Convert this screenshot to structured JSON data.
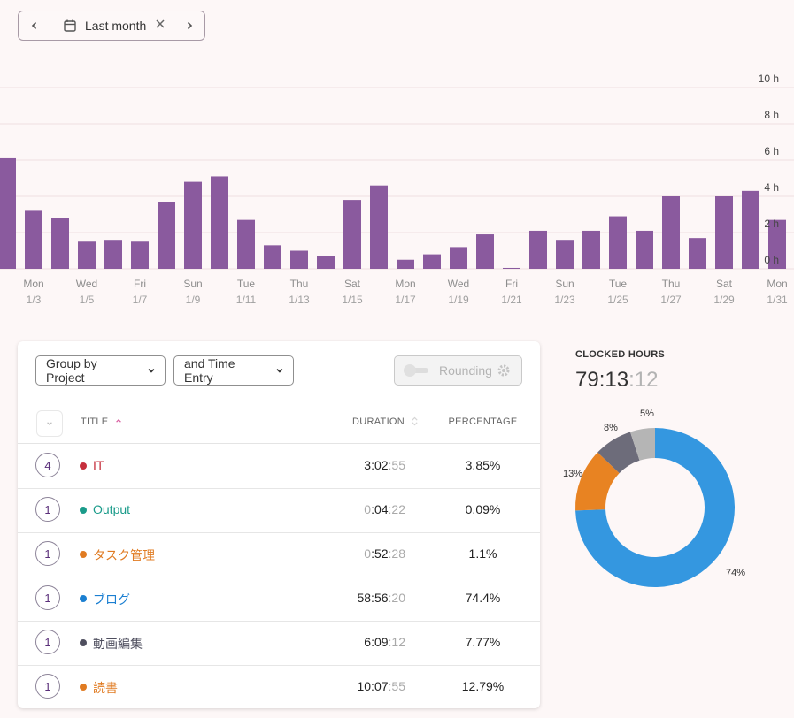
{
  "date_filter": {
    "label": "Last month"
  },
  "chart_data": {
    "type": "bar",
    "yticks": [
      "10 h",
      "8 h",
      "6 h",
      "4 h",
      "2 h",
      "0 h"
    ],
    "ylim": [
      0,
      10
    ],
    "x_labels": [
      {
        "day": "Mon",
        "date": "1/3"
      },
      {
        "day": "Wed",
        "date": "1/5"
      },
      {
        "day": "Fri",
        "date": "1/7"
      },
      {
        "day": "Sun",
        "date": "1/9"
      },
      {
        "day": "Tue",
        "date": "1/11"
      },
      {
        "day": "Thu",
        "date": "1/13"
      },
      {
        "day": "Sat",
        "date": "1/15"
      },
      {
        "day": "Mon",
        "date": "1/17"
      },
      {
        "day": "Wed",
        "date": "1/19"
      },
      {
        "day": "Fri",
        "date": "1/21"
      },
      {
        "day": "Sun",
        "date": "1/23"
      },
      {
        "day": "Tue",
        "date": "1/25"
      },
      {
        "day": "Thu",
        "date": "1/27"
      },
      {
        "day": "Sat",
        "date": "1/29"
      },
      {
        "day": "Mon",
        "date": "1/31"
      }
    ],
    "values": [
      6.1,
      3.2,
      2.8,
      1.5,
      1.6,
      1.5,
      3.7,
      4.8,
      5.1,
      2.7,
      1.3,
      1.0,
      0.7,
      3.8,
      4.6,
      0.5,
      0.8,
      1.2,
      1.9,
      0.05,
      2.1,
      1.6,
      2.1,
      2.9,
      2.1,
      4.0,
      1.7,
      4.0,
      4.3,
      2.7
    ],
    "color": "#8a5a9e"
  },
  "controls": {
    "group_by": "Group by Project",
    "sub_group": "and Time Entry",
    "rounding": "Rounding"
  },
  "table": {
    "headers": {
      "title": "TITLE",
      "duration": "DURATION",
      "percentage": "PERCENTAGE"
    },
    "rows": [
      {
        "count": "4",
        "name": "IT",
        "color": "#c62f3c",
        "lead": "",
        "main": "3:02",
        "sec": ":55",
        "pct": "3.85%"
      },
      {
        "count": "1",
        "name": "Output",
        "color": "#1a9b8a",
        "lead": "0",
        "main": ":04",
        "sec": ":22",
        "pct": "0.09%"
      },
      {
        "count": "1",
        "name": "タスク管理",
        "color": "#e07b22",
        "lead": "0",
        "main": ":52",
        "sec": ":28",
        "pct": "1.1%"
      },
      {
        "count": "1",
        "name": "ブログ",
        "color": "#1b7fd1",
        "lead": "",
        "main": "58:56",
        "sec": ":20",
        "pct": "74.4%"
      },
      {
        "count": "1",
        "name": "動画編集",
        "color": "#4e4e5e",
        "lead": "",
        "main": "6:09",
        "sec": ":12",
        "pct": "7.77%"
      },
      {
        "count": "1",
        "name": "読書",
        "color": "#e07b22",
        "lead": "",
        "main": "10:07",
        "sec": ":55",
        "pct": "12.79%"
      }
    ]
  },
  "summary": {
    "title": "CLOCKED HOURS",
    "total_main": "79:13",
    "total_sec": ":12"
  },
  "donut": [
    {
      "label": "74%",
      "value": 74.4,
      "color": "#3497e0"
    },
    {
      "label": "13%",
      "value": 12.79,
      "color": "#e88322"
    },
    {
      "label": "8%",
      "value": 7.77,
      "color": "#6d6c7a"
    },
    {
      "label": "5%",
      "value": 5.04,
      "color": "#b5b5b5"
    }
  ]
}
